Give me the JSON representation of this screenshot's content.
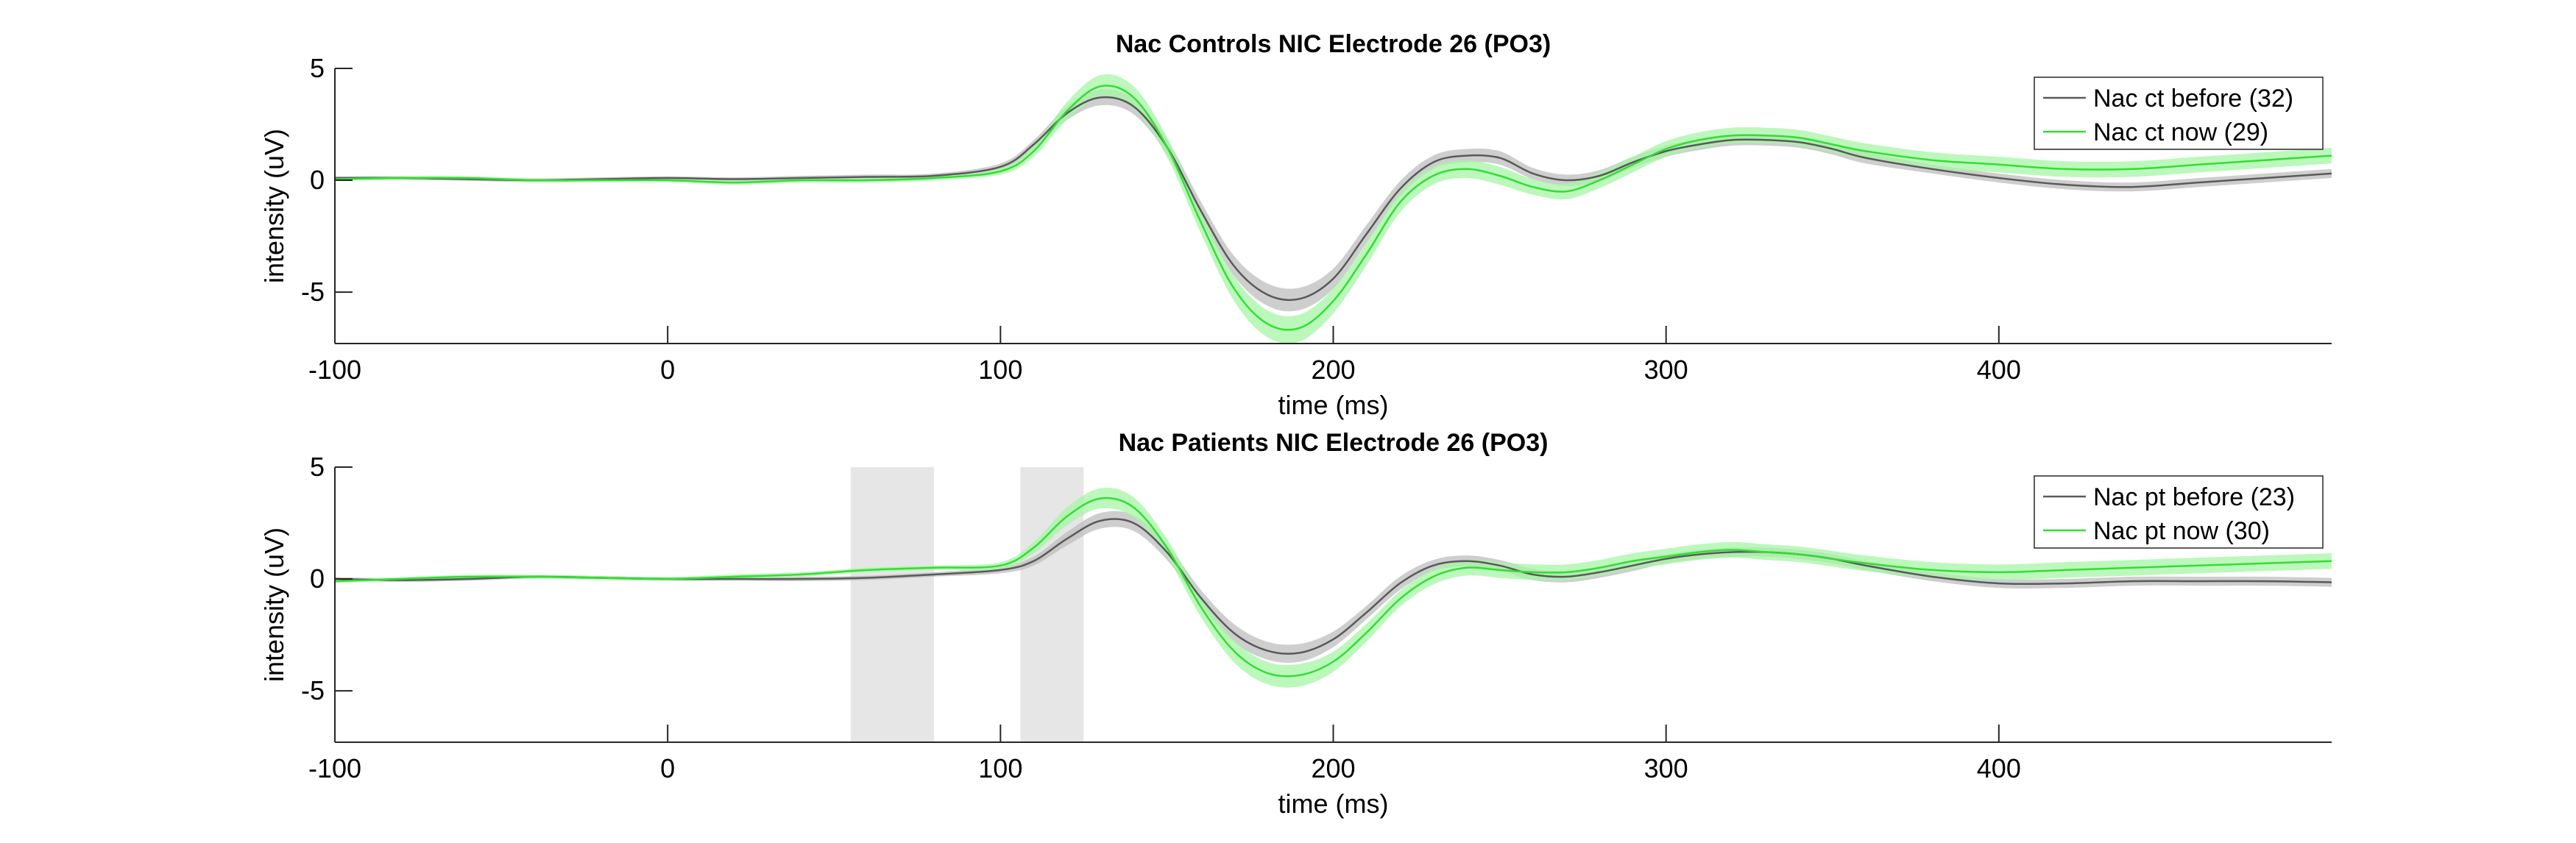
{
  "chart_data": [
    {
      "type": "line",
      "title": "Nac Controls NIC Electrode 26 (PO3)",
      "xlabel": "time (ms)",
      "ylabel": "intensity (uV)",
      "xlim": [
        -100,
        500
      ],
      "ylim": [
        -7.3,
        5
      ],
      "xticks": [
        -100,
        0,
        100,
        200,
        300,
        400
      ],
      "yticks": [
        5,
        0,
        -5
      ],
      "legend_position": "top-right",
      "shaded_regions": [],
      "series": [
        {
          "name": "Nac ct before (32)",
          "color": "#5a5a5a",
          "band_color": "#bdbdbd",
          "x": [
            -100,
            -80,
            -60,
            -40,
            -20,
            0,
            20,
            40,
            60,
            80,
            100,
            110,
            120,
            130,
            140,
            150,
            160,
            170,
            180,
            190,
            200,
            210,
            220,
            230,
            240,
            250,
            260,
            270,
            280,
            290,
            300,
            310,
            320,
            330,
            340,
            350,
            360,
            380,
            400,
            420,
            440,
            460,
            480,
            500
          ],
          "y": [
            0.1,
            0.1,
            0.05,
            0.0,
            0.05,
            0.1,
            0.05,
            0.1,
            0.15,
            0.2,
            0.6,
            1.6,
            3.0,
            3.7,
            3.3,
            1.5,
            -1.3,
            -3.8,
            -5.1,
            -5.3,
            -4.4,
            -2.4,
            -0.4,
            0.8,
            1.1,
            1.0,
            0.3,
            0.0,
            0.2,
            0.8,
            1.3,
            1.6,
            1.8,
            1.8,
            1.7,
            1.4,
            1.0,
            0.5,
            0.1,
            -0.2,
            -0.3,
            -0.1,
            0.1,
            0.3
          ],
          "err": [
            0.08,
            0.08,
            0.08,
            0.08,
            0.08,
            0.08,
            0.08,
            0.1,
            0.1,
            0.1,
            0.15,
            0.2,
            0.3,
            0.35,
            0.35,
            0.35,
            0.4,
            0.45,
            0.5,
            0.5,
            0.45,
            0.4,
            0.35,
            0.3,
            0.3,
            0.3,
            0.25,
            0.25,
            0.25,
            0.25,
            0.25,
            0.25,
            0.25,
            0.25,
            0.25,
            0.25,
            0.25,
            0.2,
            0.2,
            0.2,
            0.2,
            0.2,
            0.2,
            0.2
          ]
        },
        {
          "name": "Nac ct now (29)",
          "color": "#33dd33",
          "band_color": "#a6f5a6",
          "x": [
            -100,
            -80,
            -60,
            -40,
            -20,
            0,
            20,
            40,
            60,
            80,
            100,
            110,
            120,
            130,
            140,
            150,
            160,
            170,
            180,
            190,
            200,
            210,
            220,
            230,
            240,
            250,
            260,
            270,
            280,
            290,
            300,
            310,
            320,
            330,
            340,
            350,
            360,
            380,
            400,
            420,
            440,
            460,
            480,
            500
          ],
          "y": [
            0.05,
            0.1,
            0.1,
            0.0,
            0.0,
            0.0,
            -0.1,
            0.0,
            0.0,
            0.1,
            0.4,
            1.3,
            3.1,
            4.2,
            3.7,
            1.5,
            -1.8,
            -4.8,
            -6.4,
            -6.6,
            -5.4,
            -3.3,
            -1.0,
            0.2,
            0.5,
            0.2,
            -0.3,
            -0.5,
            0.0,
            0.7,
            1.4,
            1.8,
            2.0,
            2.0,
            1.9,
            1.6,
            1.3,
            0.9,
            0.7,
            0.5,
            0.5,
            0.7,
            0.9,
            1.1
          ],
          "err": [
            0.08,
            0.08,
            0.08,
            0.08,
            0.08,
            0.08,
            0.1,
            0.1,
            0.1,
            0.1,
            0.15,
            0.25,
            0.4,
            0.5,
            0.5,
            0.45,
            0.5,
            0.55,
            0.6,
            0.6,
            0.55,
            0.5,
            0.45,
            0.4,
            0.4,
            0.4,
            0.35,
            0.35,
            0.35,
            0.35,
            0.35,
            0.35,
            0.35,
            0.35,
            0.35,
            0.35,
            0.35,
            0.35,
            0.35,
            0.35,
            0.35,
            0.35,
            0.35,
            0.35
          ]
        }
      ]
    },
    {
      "type": "line",
      "title": "Nac Patients NIC Electrode 26 (PO3)",
      "xlabel": "time (ms)",
      "ylabel": "intensity (uV)",
      "xlim": [
        -100,
        500
      ],
      "ylim": [
        -7.3,
        5
      ],
      "xticks": [
        -100,
        0,
        100,
        200,
        300,
        400
      ],
      "yticks": [
        5,
        0,
        -5
      ],
      "legend_position": "top-right",
      "shaded_regions": [
        [
          55,
          80
        ],
        [
          106,
          125
        ]
      ],
      "series": [
        {
          "name": "Nac pt before (23)",
          "color": "#5a5a5a",
          "band_color": "#bdbdbd",
          "x": [
            -100,
            -80,
            -60,
            -40,
            -20,
            0,
            20,
            40,
            60,
            80,
            100,
            110,
            120,
            130,
            140,
            150,
            160,
            170,
            180,
            190,
            200,
            210,
            220,
            230,
            240,
            250,
            260,
            270,
            280,
            290,
            300,
            310,
            320,
            330,
            340,
            350,
            360,
            380,
            400,
            420,
            440,
            460,
            480,
            500
          ],
          "y": [
            0.0,
            -0.05,
            0.0,
            0.1,
            0.05,
            0.0,
            0.0,
            0.0,
            0.05,
            0.2,
            0.4,
            0.8,
            1.8,
            2.6,
            2.5,
            1.2,
            -0.8,
            -2.4,
            -3.2,
            -3.3,
            -2.7,
            -1.5,
            -0.2,
            0.6,
            0.8,
            0.6,
            0.2,
            0.1,
            0.3,
            0.6,
            0.9,
            1.1,
            1.2,
            1.2,
            1.1,
            0.9,
            0.6,
            0.1,
            -0.2,
            -0.2,
            -0.1,
            -0.1,
            -0.1,
            -0.15
          ],
          "err": [
            0.08,
            0.08,
            0.08,
            0.08,
            0.08,
            0.08,
            0.08,
            0.1,
            0.1,
            0.1,
            0.15,
            0.2,
            0.3,
            0.35,
            0.35,
            0.35,
            0.35,
            0.4,
            0.4,
            0.4,
            0.35,
            0.3,
            0.3,
            0.25,
            0.25,
            0.25,
            0.25,
            0.25,
            0.25,
            0.25,
            0.2,
            0.2,
            0.2,
            0.2,
            0.2,
            0.2,
            0.2,
            0.2,
            0.2,
            0.2,
            0.2,
            0.2,
            0.2,
            0.2
          ]
        },
        {
          "name": "Nac pt now (30)",
          "color": "#33dd33",
          "band_color": "#a6f5a6",
          "x": [
            -100,
            -80,
            -60,
            -40,
            -20,
            0,
            20,
            40,
            60,
            80,
            100,
            110,
            120,
            130,
            140,
            150,
            160,
            170,
            180,
            190,
            200,
            210,
            220,
            230,
            240,
            250,
            260,
            270,
            280,
            290,
            300,
            310,
            320,
            330,
            340,
            350,
            360,
            380,
            400,
            420,
            440,
            460,
            480,
            500
          ],
          "y": [
            -0.1,
            0.0,
            0.1,
            0.1,
            0.05,
            0.0,
            0.1,
            0.2,
            0.4,
            0.5,
            0.6,
            1.4,
            2.8,
            3.6,
            3.2,
            1.4,
            -1.2,
            -3.2,
            -4.2,
            -4.3,
            -3.7,
            -2.4,
            -0.9,
            0.1,
            0.5,
            0.4,
            0.3,
            0.3,
            0.5,
            0.8,
            1.0,
            1.2,
            1.3,
            1.2,
            1.1,
            0.9,
            0.7,
            0.4,
            0.3,
            0.4,
            0.5,
            0.6,
            0.7,
            0.8
          ],
          "err": [
            0.08,
            0.08,
            0.08,
            0.08,
            0.08,
            0.08,
            0.1,
            0.1,
            0.1,
            0.1,
            0.15,
            0.25,
            0.4,
            0.45,
            0.45,
            0.4,
            0.45,
            0.5,
            0.5,
            0.5,
            0.45,
            0.4,
            0.35,
            0.35,
            0.35,
            0.35,
            0.35,
            0.35,
            0.35,
            0.35,
            0.35,
            0.35,
            0.35,
            0.35,
            0.35,
            0.35,
            0.35,
            0.35,
            0.35,
            0.35,
            0.35,
            0.35,
            0.35,
            0.35
          ]
        }
      ]
    }
  ]
}
